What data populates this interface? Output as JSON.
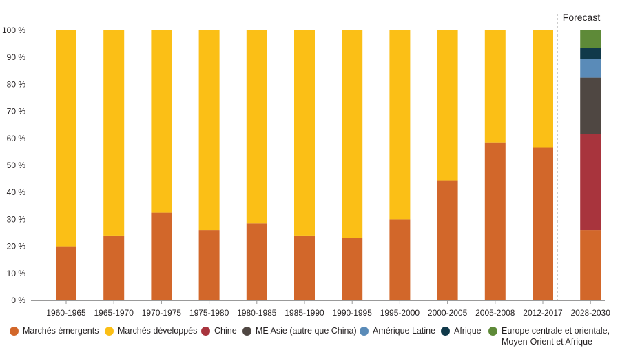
{
  "chart_data": {
    "type": "bar",
    "stacked": true,
    "categories": [
      "1960-1965",
      "1965-1970",
      "1970-1975",
      "1975-1980",
      "1980-1985",
      "1985-1990",
      "1990-1995",
      "1995-2000",
      "2000-2005",
      "2005-2008",
      "2012-2017",
      "2028-2030"
    ],
    "series": [
      {
        "name": "Marchés émergents",
        "color": "#d2672a",
        "values": [
          20,
          24,
          32.5,
          26,
          28.5,
          24,
          23,
          30,
          44.5,
          58.5,
          56.5,
          26
        ]
      },
      {
        "name": "Marchés développés",
        "color": "#fbbf16",
        "values": [
          80,
          76,
          67.5,
          74,
          71.5,
          76,
          77,
          70,
          55.5,
          41.5,
          43.5,
          0
        ]
      },
      {
        "name": "Chine",
        "color": "#a8343d",
        "values": [
          0,
          0,
          0,
          0,
          0,
          0,
          0,
          0,
          0,
          0,
          0,
          35.5
        ]
      },
      {
        "name": "ME Asie (autre que China)",
        "color": "#4f4742",
        "values": [
          0,
          0,
          0,
          0,
          0,
          0,
          0,
          0,
          0,
          0,
          0,
          21
        ]
      },
      {
        "name": "Amérique Latine",
        "color": "#5a8bb8",
        "values": [
          0,
          0,
          0,
          0,
          0,
          0,
          0,
          0,
          0,
          0,
          0,
          7
        ]
      },
      {
        "name": "Afrique",
        "color": "#10394a",
        "values": [
          0,
          0,
          0,
          0,
          0,
          0,
          0,
          0,
          0,
          0,
          0,
          4
        ]
      },
      {
        "name": "Europe centrale et orientale,\nMoyen-Orient et Afrique",
        "color": "#5e8a38",
        "values": [
          0,
          0,
          0,
          0,
          0,
          0,
          0,
          0,
          0,
          0,
          0,
          6.5
        ]
      }
    ],
    "yticks": [
      "0 %",
      "10 %",
      "20 %",
      "30 %",
      "40 %",
      "50 %",
      "60 %",
      "70 %",
      "80 %",
      "90 %",
      "100 %"
    ],
    "ylim": [
      0,
      100
    ],
    "annotation": "Forecast",
    "legend_position": "bottom",
    "grid": false
  }
}
